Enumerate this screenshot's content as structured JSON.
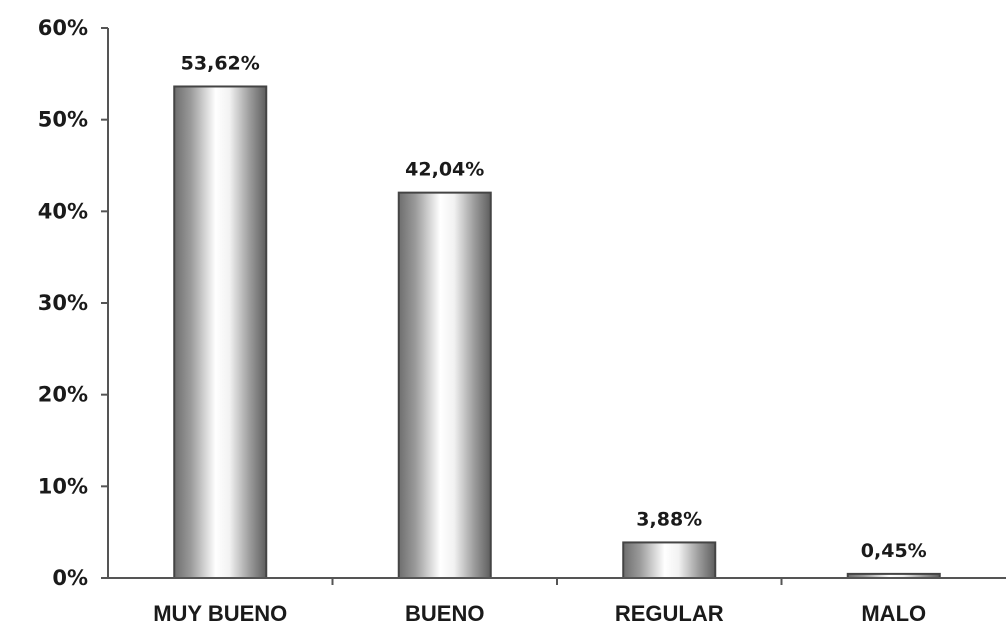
{
  "chart_data": {
    "type": "bar",
    "categories": [
      "MUY BUENO",
      "BUENO",
      "REGULAR",
      "MALO"
    ],
    "values": [
      53.62,
      42.04,
      3.88,
      0.45
    ],
    "data_labels": [
      "53,62%",
      "42,04%",
      "3,88%",
      "0,45%"
    ],
    "y_ticks": [
      {
        "value": 0,
        "label": "0%"
      },
      {
        "value": 10,
        "label": "10%"
      },
      {
        "value": 20,
        "label": "20%"
      },
      {
        "value": 30,
        "label": "30%"
      },
      {
        "value": 40,
        "label": "40%"
      },
      {
        "value": 50,
        "label": "50%"
      },
      {
        "value": 60,
        "label": "60%"
      }
    ],
    "ylim": [
      0,
      60
    ],
    "grid": false,
    "legend": "none",
    "bar_color": "#b8b8b8",
    "title": "",
    "xlabel": "",
    "ylabel": ""
  }
}
